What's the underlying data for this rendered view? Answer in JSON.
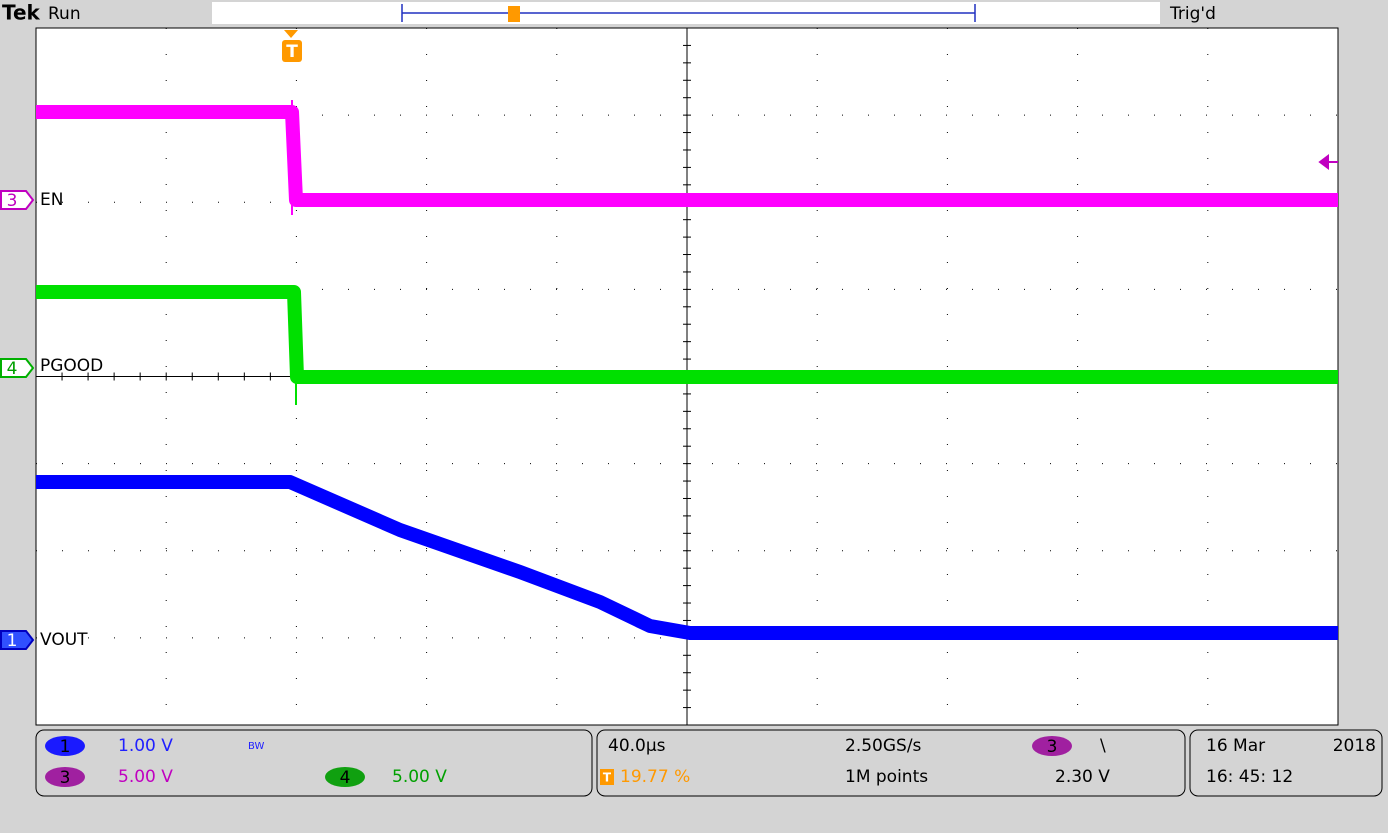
{
  "header": {
    "brand": "Tek",
    "state": "Run",
    "trigger_marker": "T",
    "trigger_status": "Trig'd"
  },
  "traces": [
    {
      "channel": "3",
      "label": "EN"
    },
    {
      "channel": "4",
      "label": "PGOOD"
    },
    {
      "channel": "1",
      "label": "VOUT"
    }
  ],
  "readouts": {
    "channels": [
      {
        "channel": "1",
        "scale": "1.00 V",
        "bandwidth": "BW"
      },
      {
        "channel": "3",
        "scale": "5.00 V"
      },
      {
        "channel": "4",
        "scale": "5.00 V"
      }
    ],
    "timebase": {
      "horizontal_scale": "40.0µs",
      "trigger_icon": "T",
      "trigger_position": "19.77 %",
      "sample_rate": "2.50GS/s",
      "record_length": "1M points"
    },
    "trigger": {
      "source": "3",
      "slope": "\\",
      "level": "2.30 V"
    },
    "datetime": {
      "date": "16 Mar",
      "year": "2018",
      "time": "16: 45: 12"
    }
  }
}
